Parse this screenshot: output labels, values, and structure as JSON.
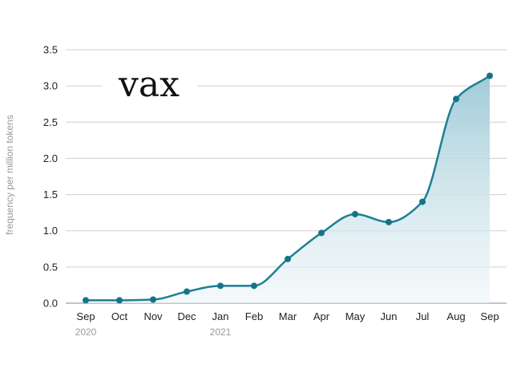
{
  "chart_data": {
    "type": "area",
    "title": "vax",
    "ylabel": "frequency per million tokens",
    "xlabel": "",
    "categories": [
      "Sep",
      "Oct",
      "Nov",
      "Dec",
      "Jan",
      "Feb",
      "Mar",
      "Apr",
      "May",
      "Jun",
      "Jul",
      "Aug",
      "Sep"
    ],
    "year_labels": [
      {
        "index": 0,
        "label": "2020"
      },
      {
        "index": 4,
        "label": "2021"
      }
    ],
    "values": [
      0.04,
      0.04,
      0.05,
      0.16,
      0.24,
      0.24,
      0.61,
      0.97,
      1.23,
      1.12,
      1.4,
      2.82,
      3.14
    ],
    "ylim": [
      0,
      3.5
    ],
    "yticks": [
      "0.0",
      "0.5",
      "1.0",
      "1.5",
      "2.0",
      "2.5",
      "3.0",
      "3.5"
    ],
    "grid": true,
    "colors": {
      "line": "#1f7f93",
      "marker": "#17738a",
      "fill_top": "#9cc9d6",
      "fill_bottom": "#eef6f9"
    }
  }
}
